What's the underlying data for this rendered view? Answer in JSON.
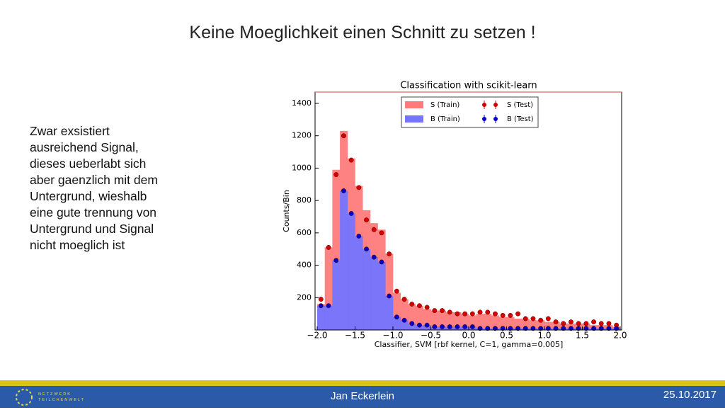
{
  "slide": {
    "title": "Keine Moeglichkeit einen Schnitt zu setzen !",
    "text": [
      "Zwar exsistiert",
      "ausreichend Signal,",
      "dieses ueberlabt sich",
      "aber gaenzlich mit dem",
      "Untergrund, wieshalb",
      "eine gute trennung von",
      "Untergrund und Signal",
      "nicht moeglich ist"
    ],
    "footer": {
      "author": "Jan Eckerlein",
      "date": "25.10.2017",
      "logo": [
        "NETZWERK",
        "TEILCHENWELT"
      ]
    }
  },
  "chart_data": {
    "type": "histogram",
    "title": "Classification with scikit-learn",
    "x_label": "Classifier, SVM [rbf kernel, C=1, gamma=0.005]",
    "y_label": "Counts/Bin",
    "bins": [
      -2.0,
      -1.9,
      -1.8,
      -1.7,
      -1.6,
      -1.5,
      -1.4,
      -1.3,
      -1.2,
      -1.1,
      -1.0,
      -0.9,
      -0.8,
      -0.7,
      -0.6,
      -0.5,
      -0.4,
      -0.3,
      -0.2,
      -0.1,
      0.0,
      0.1,
      0.2,
      0.3,
      0.4,
      0.5,
      0.6,
      0.7,
      0.8,
      0.9,
      1.0,
      1.1,
      1.2,
      1.3,
      1.4,
      1.5,
      1.6,
      1.7,
      1.8,
      1.9,
      2.0
    ],
    "series": [
      {
        "name": "S (Train)",
        "style": "bar",
        "color": "#ff7b7b",
        "values": [
          160,
          510,
          990,
          1230,
          1060,
          890,
          740,
          660,
          620,
          470,
          230,
          190,
          160,
          150,
          130,
          120,
          120,
          110,
          110,
          100,
          90,
          100,
          100,
          90,
          80,
          80,
          70,
          70,
          60,
          60,
          50,
          50,
          40,
          40,
          40,
          40,
          30,
          30,
          30,
          20
        ]
      },
      {
        "name": "B (Train)",
        "style": "bar",
        "color": "#7474ff",
        "values": [
          150,
          150,
          430,
          860,
          720,
          580,
          500,
          450,
          420,
          210,
          80,
          60,
          40,
          30,
          30,
          20,
          20,
          20,
          20,
          20,
          20,
          10,
          10,
          10,
          10,
          10,
          10,
          10,
          10,
          10,
          10,
          10,
          10,
          10,
          10,
          10,
          10,
          10,
          10,
          10
        ]
      },
      {
        "name": "S (Test)",
        "style": "points",
        "color": "#d40000",
        "values": [
          190,
          510,
          960,
          1200,
          1050,
          880,
          680,
          620,
          600,
          470,
          240,
          190,
          160,
          150,
          140,
          120,
          120,
          110,
          100,
          100,
          100,
          110,
          110,
          100,
          90,
          90,
          100,
          70,
          70,
          60,
          70,
          50,
          40,
          50,
          40,
          40,
          50,
          40,
          40,
          30
        ]
      },
      {
        "name": "B (Test)",
        "style": "points",
        "color": "#0000c8",
        "values": [
          150,
          150,
          430,
          860,
          720,
          580,
          500,
          450,
          420,
          210,
          80,
          60,
          40,
          30,
          30,
          20,
          20,
          20,
          20,
          20,
          20,
          10,
          10,
          10,
          10,
          10,
          10,
          10,
          10,
          10,
          10,
          10,
          10,
          10,
          10,
          10,
          10,
          10,
          10,
          10
        ]
      }
    ],
    "xlim": [
      -2.0,
      2.0
    ],
    "ylim": [
      0,
      1470
    ],
    "xticks": [
      {
        "value": -2.0,
        "label": "−2.0"
      },
      {
        "value": -1.5,
        "label": "−1.5"
      },
      {
        "value": -1.0,
        "label": "−1.0"
      },
      {
        "value": -0.5,
        "label": "−0.5"
      },
      {
        "value": 0,
        "label": "0.0"
      },
      0.5,
      {
        "value": 1.0,
        "label": "1.0"
      },
      1.5,
      {
        "value": 2.0,
        "label": "2.0"
      }
    ],
    "yticks": [
      200,
      400,
      600,
      800,
      1000,
      1200,
      1400
    ],
    "legend": "upper right"
  }
}
